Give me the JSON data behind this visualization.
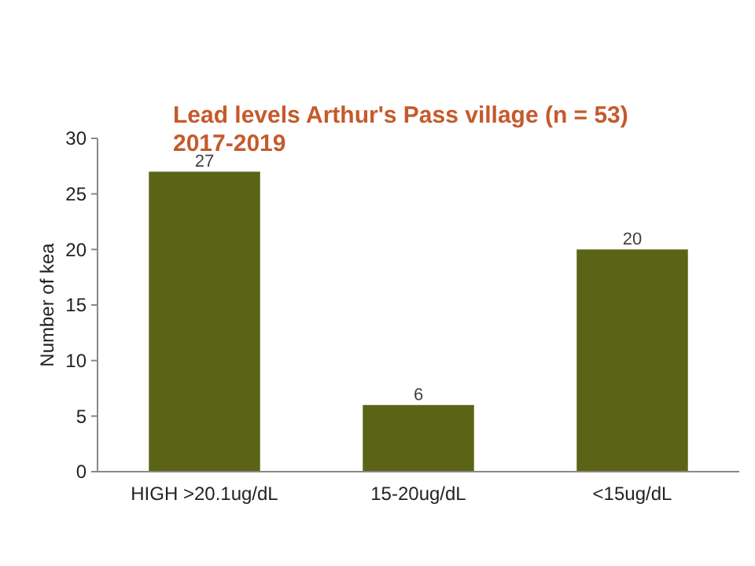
{
  "chart_data": {
    "type": "bar",
    "title": "Lead levels Arthur's Pass village (n = 53) 2017-2019",
    "ylabel": "Number of kea",
    "categories": [
      "HIGH >20.1ug/dL",
      "15-20ug/dL",
      "<15ug/dL"
    ],
    "values": [
      27,
      6,
      20
    ],
    "color": "#5b6414",
    "ylim": [
      0,
      30
    ],
    "yticks": [
      0,
      5,
      10,
      15,
      20,
      25,
      30
    ],
    "grid": false,
    "data_labels": true
  }
}
